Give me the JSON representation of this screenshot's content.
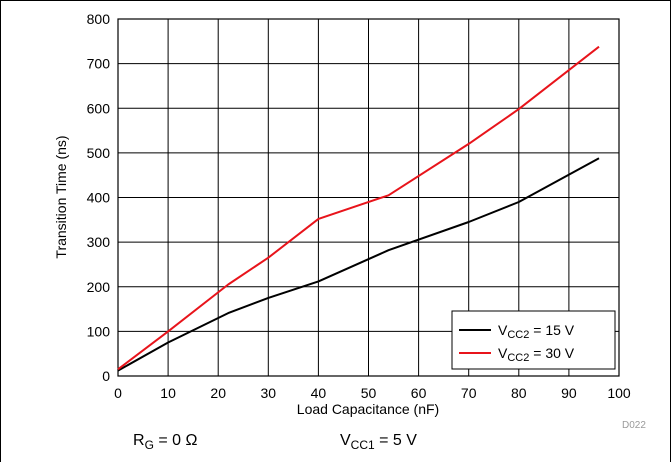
{
  "chart_data": {
    "type": "line",
    "xlabel": "Load Capacitance (nF)",
    "ylabel": "Transition Time (ns)",
    "xlim": [
      0,
      100
    ],
    "ylim": [
      0,
      800
    ],
    "x_ticks": [
      "0",
      "10",
      "20",
      "30",
      "40",
      "50",
      "60",
      "70",
      "80",
      "90",
      "100"
    ],
    "y_ticks": [
      "0",
      "100",
      "200",
      "300",
      "400",
      "500",
      "600",
      "700",
      "800"
    ],
    "grid": true,
    "legend_position": "bottom-right",
    "series": [
      {
        "name": "V_CC2 = 15 V",
        "name_main": "V",
        "name_sub": "CC2",
        "name_rest": " = 15 V",
        "color": "#000000",
        "points": [
          [
            0,
            12
          ],
          [
            10,
            75
          ],
          [
            22,
            141
          ],
          [
            30,
            175
          ],
          [
            40,
            212
          ],
          [
            54,
            282
          ],
          [
            70,
            345
          ],
          [
            80,
            390
          ],
          [
            96,
            488
          ]
        ]
      },
      {
        "name": "V_CC2 = 30 V",
        "name_main": "V",
        "name_sub": "CC2",
        "name_rest": " = 30 V",
        "color": "#e8141b",
        "points": [
          [
            0,
            15
          ],
          [
            10,
            100
          ],
          [
            22,
            205
          ],
          [
            30,
            265
          ],
          [
            40,
            352
          ],
          [
            54,
            405
          ],
          [
            70,
            520
          ],
          [
            80,
            598
          ],
          [
            96,
            738
          ]
        ]
      }
    ]
  },
  "conditions": {
    "rg_main": "R",
    "rg_sub": "G",
    "rg_rest": " = 0 Ω",
    "vcc_main": "V",
    "vcc_sub": "CC1",
    "vcc_rest": " = 5 V"
  },
  "figure_code": "D022"
}
